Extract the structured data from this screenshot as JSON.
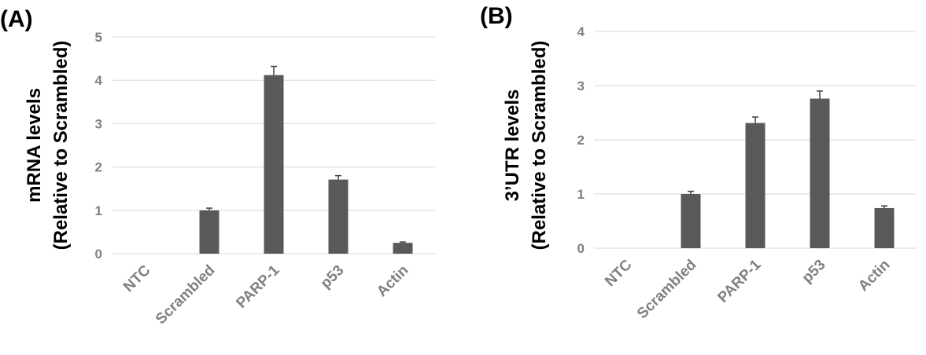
{
  "colors": {
    "bar": "#595959",
    "error_bar": "#404040",
    "grid": "#d9d9d9",
    "tick_text": "#808080"
  },
  "chart_data": [
    {
      "panel_label": "(A)",
      "type": "bar",
      "title": "",
      "xlabel": "",
      "ylabel_line1": "mRNA levels",
      "ylabel_line2": "(Relative to Scrambled)",
      "categories": [
        "NTC",
        "Scrambled",
        "PARP-1",
        "p53",
        "Actin"
      ],
      "values": [
        0,
        1.0,
        4.12,
        1.71,
        0.25
      ],
      "errors": [
        0,
        0.05,
        0.2,
        0.09,
        0.02
      ],
      "ylim": [
        0,
        5
      ],
      "yticks": [
        "0",
        "1",
        "2",
        "3",
        "4",
        "5"
      ],
      "grid": true
    },
    {
      "panel_label": "(B)",
      "type": "bar",
      "title": "",
      "xlabel": "",
      "ylabel_line1": "3’UTR levels",
      "ylabel_line2": "(Relative to Scrambled)",
      "categories": [
        "NTC",
        "Scrambled",
        "PARP-1",
        "p53",
        "Actin"
      ],
      "values": [
        0,
        1.0,
        2.31,
        2.76,
        0.74
      ],
      "errors": [
        0,
        0.05,
        0.11,
        0.14,
        0.04
      ],
      "ylim": [
        0,
        4
      ],
      "yticks": [
        "0",
        "1",
        "2",
        "3",
        "4"
      ],
      "grid": true
    }
  ]
}
